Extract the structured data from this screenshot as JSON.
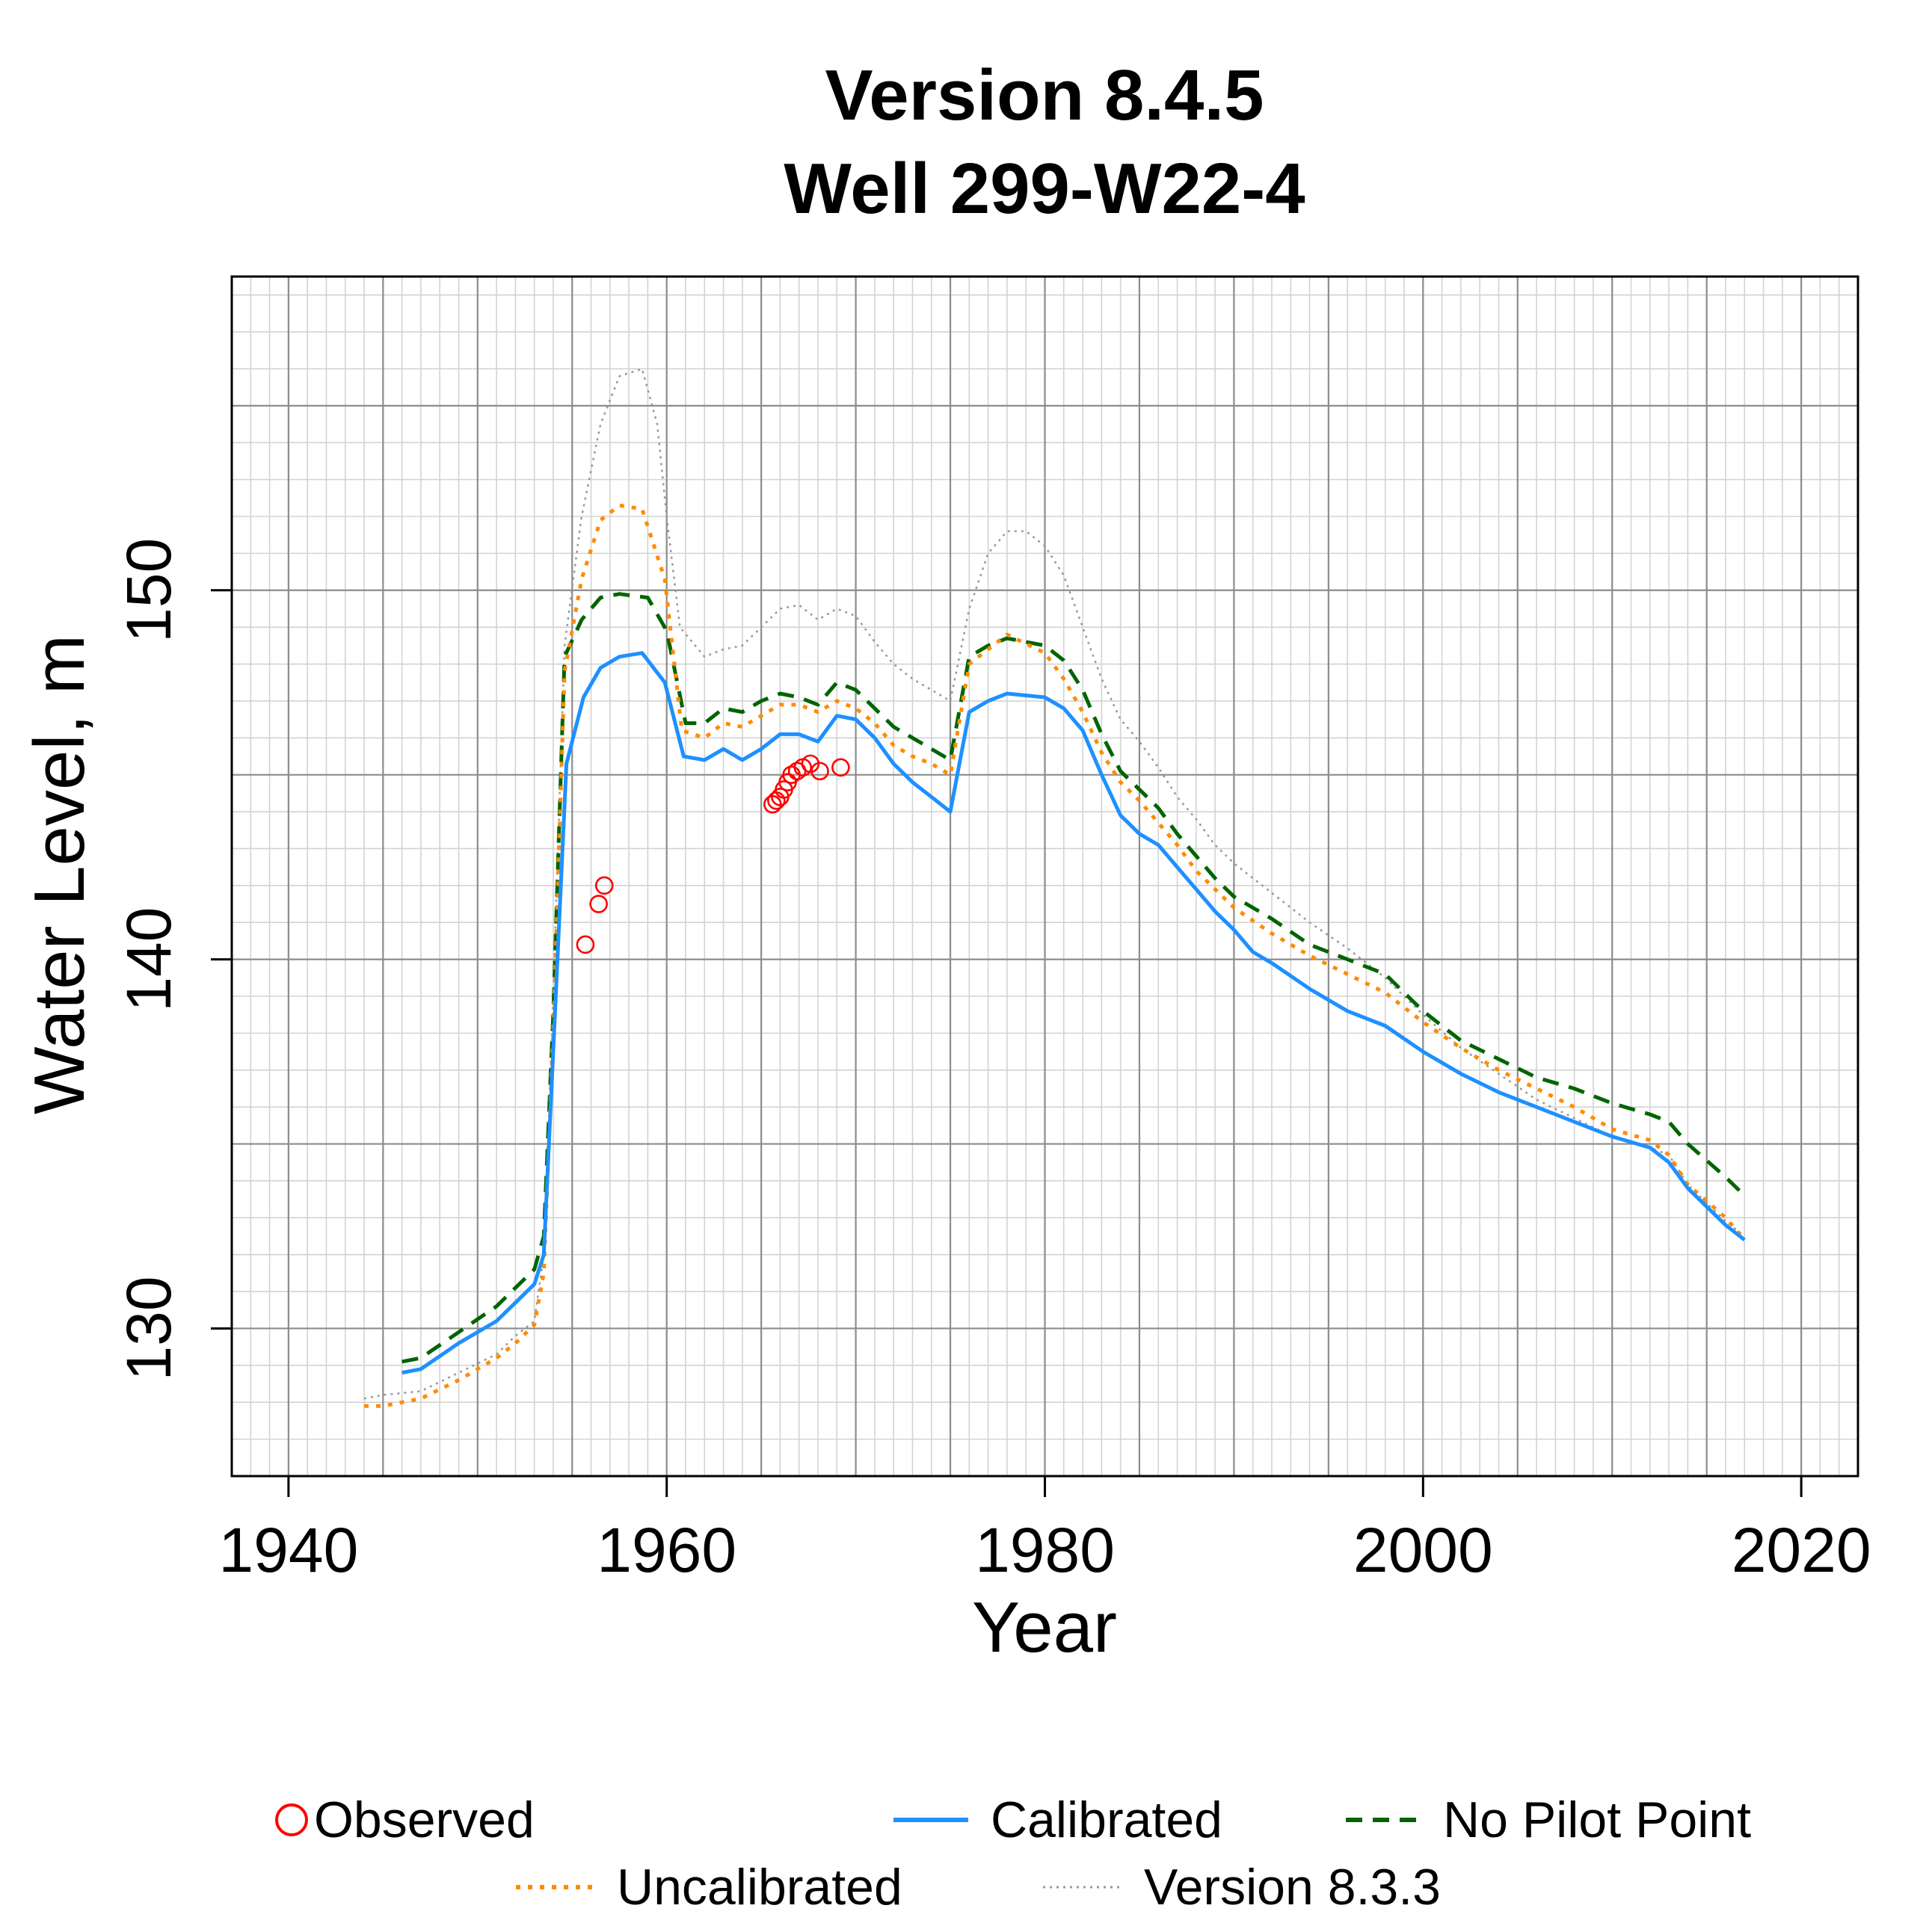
{
  "chart_data": {
    "type": "line",
    "title": "Version 8.4.5",
    "subtitle": "Well 299-W22-4",
    "xlabel": "Year",
    "ylabel": "Water Level, m",
    "xlim": [
      1937,
      2023
    ],
    "ylim": [
      126,
      158.5
    ],
    "x_ticks": [
      1940,
      1960,
      1980,
      2000,
      2020
    ],
    "y_ticks": [
      130,
      140,
      150
    ],
    "x_tick_labels": [
      "1940",
      "1960",
      "1980",
      "2000",
      "2020"
    ],
    "y_tick_labels": [
      "130",
      "140",
      "150"
    ],
    "grid": true,
    "legend_position": "bottom",
    "series": [
      {
        "name": "Calibrated",
        "style": "solid",
        "color": "#1E90FF",
        "points": [
          [
            1946,
            128.8
          ],
          [
            1947,
            128.9
          ],
          [
            1949,
            129.6
          ],
          [
            1951,
            130.2
          ],
          [
            1952,
            130.7
          ],
          [
            1953,
            131.2
          ],
          [
            1953.5,
            132.0
          ],
          [
            1954,
            137.5
          ],
          [
            1954.7,
            145.3
          ],
          [
            1955.6,
            147.1
          ],
          [
            1956.5,
            147.9
          ],
          [
            1957.5,
            148.2
          ],
          [
            1958.7,
            148.3
          ],
          [
            1959.9,
            147.5
          ],
          [
            1960.9,
            145.5
          ],
          [
            1962,
            145.4
          ],
          [
            1963,
            145.7
          ],
          [
            1964,
            145.4
          ],
          [
            1965,
            145.7
          ],
          [
            1966,
            146.1
          ],
          [
            1967,
            146.1
          ],
          [
            1968,
            145.9
          ],
          [
            1969,
            146.6
          ],
          [
            1970,
            146.5
          ],
          [
            1971,
            146.0
          ],
          [
            1972,
            145.3
          ],
          [
            1973,
            144.8
          ],
          [
            1974,
            144.4
          ],
          [
            1975,
            144.0
          ],
          [
            1976,
            146.7
          ],
          [
            1977,
            147.0
          ],
          [
            1978,
            147.2
          ],
          [
            1980,
            147.1
          ],
          [
            1981,
            146.8
          ],
          [
            1982,
            146.2
          ],
          [
            1983,
            145.0
          ],
          [
            1984,
            143.9
          ],
          [
            1985,
            143.4
          ],
          [
            1986,
            143.1
          ],
          [
            1987,
            142.5
          ],
          [
            1988,
            141.9
          ],
          [
            1989,
            141.3
          ],
          [
            1990,
            140.8
          ],
          [
            1991,
            140.2
          ],
          [
            1992,
            139.9
          ],
          [
            1994,
            139.2
          ],
          [
            1996,
            138.6
          ],
          [
            1998,
            138.2
          ],
          [
            2000,
            137.5
          ],
          [
            2002,
            136.9
          ],
          [
            2004,
            136.4
          ],
          [
            2006,
            136.0
          ],
          [
            2008,
            135.6
          ],
          [
            2010,
            135.2
          ],
          [
            2012,
            134.9
          ],
          [
            2013,
            134.5
          ],
          [
            2014,
            133.8
          ],
          [
            2016,
            132.8
          ],
          [
            2017,
            132.4
          ]
        ]
      },
      {
        "name": "No Pilot Point",
        "style": "dashed",
        "color": "#006400",
        "points": [
          [
            1946,
            129.1
          ],
          [
            1947,
            129.2
          ],
          [
            1949,
            129.9
          ],
          [
            1951,
            130.6
          ],
          [
            1952,
            131.1
          ],
          [
            1953,
            131.6
          ],
          [
            1953.5,
            132.5
          ],
          [
            1954,
            138.5
          ],
          [
            1954.6,
            148.2
          ],
          [
            1955.5,
            149.2
          ],
          [
            1956.5,
            149.8
          ],
          [
            1957.5,
            149.9
          ],
          [
            1959,
            149.8
          ],
          [
            1960,
            148.9
          ],
          [
            1961,
            146.4
          ],
          [
            1962,
            146.4
          ],
          [
            1963,
            146.8
          ],
          [
            1964,
            146.7
          ],
          [
            1965,
            147.0
          ],
          [
            1966,
            147.2
          ],
          [
            1967,
            147.1
          ],
          [
            1968,
            146.9
          ],
          [
            1969,
            147.5
          ],
          [
            1970,
            147.3
          ],
          [
            1971,
            146.8
          ],
          [
            1972,
            146.3
          ],
          [
            1973,
            146.0
          ],
          [
            1974,
            145.7
          ],
          [
            1975,
            145.4
          ],
          [
            1976,
            148.2
          ],
          [
            1977,
            148.5
          ],
          [
            1978,
            148.7
          ],
          [
            1980,
            148.5
          ],
          [
            1981,
            148.1
          ],
          [
            1982,
            147.3
          ],
          [
            1983,
            146.1
          ],
          [
            1984,
            145.1
          ],
          [
            1985,
            144.6
          ],
          [
            1986,
            144.1
          ],
          [
            1987,
            143.4
          ],
          [
            1988,
            142.8
          ],
          [
            1989,
            142.2
          ],
          [
            1990,
            141.7
          ],
          [
            1992,
            141.1
          ],
          [
            1994,
            140.4
          ],
          [
            1996,
            140.0
          ],
          [
            1998,
            139.6
          ],
          [
            2000,
            138.6
          ],
          [
            2002,
            137.8
          ],
          [
            2004,
            137.3
          ],
          [
            2006,
            136.8
          ],
          [
            2008,
            136.5
          ],
          [
            2010,
            136.1
          ],
          [
            2012,
            135.8
          ],
          [
            2013,
            135.6
          ],
          [
            2014,
            135.0
          ],
          [
            2016,
            134.1
          ],
          [
            2017,
            133.6
          ]
        ]
      },
      {
        "name": "Uncalibrated",
        "style": "dotted",
        "color": "#FF8C00",
        "points": [
          [
            1944,
            127.9
          ],
          [
            1945,
            127.9
          ],
          [
            1947,
            128.1
          ],
          [
            1949,
            128.6
          ],
          [
            1951,
            129.2
          ],
          [
            1952,
            129.6
          ],
          [
            1953,
            130.1
          ],
          [
            1953.5,
            131.5
          ],
          [
            1954,
            138.0
          ],
          [
            1954.6,
            147.8
          ],
          [
            1955.5,
            150.3
          ],
          [
            1956.5,
            151.9
          ],
          [
            1957.5,
            152.3
          ],
          [
            1958.7,
            152.2
          ],
          [
            1959.9,
            150.3
          ],
          [
            1960.8,
            146.2
          ],
          [
            1962,
            146.0
          ],
          [
            1963,
            146.4
          ],
          [
            1964,
            146.3
          ],
          [
            1965,
            146.6
          ],
          [
            1966,
            146.9
          ],
          [
            1967,
            146.9
          ],
          [
            1968,
            146.7
          ],
          [
            1969,
            147.0
          ],
          [
            1970,
            146.8
          ],
          [
            1971,
            146.4
          ],
          [
            1972,
            145.8
          ],
          [
            1973,
            145.5
          ],
          [
            1974,
            145.3
          ],
          [
            1975,
            145.0
          ],
          [
            1976,
            148.0
          ],
          [
            1977,
            148.4
          ],
          [
            1978,
            148.8
          ],
          [
            1980,
            148.3
          ],
          [
            1981,
            147.6
          ],
          [
            1982,
            146.7
          ],
          [
            1983,
            145.6
          ],
          [
            1984,
            144.8
          ],
          [
            1985,
            144.3
          ],
          [
            1986,
            143.7
          ],
          [
            1987,
            143.1
          ],
          [
            1988,
            142.4
          ],
          [
            1989,
            141.9
          ],
          [
            1990,
            141.4
          ],
          [
            1992,
            140.7
          ],
          [
            1994,
            140.1
          ],
          [
            1996,
            139.6
          ],
          [
            1998,
            139.1
          ],
          [
            2000,
            138.3
          ],
          [
            2002,
            137.6
          ],
          [
            2004,
            137.0
          ],
          [
            2006,
            136.5
          ],
          [
            2008,
            136.0
          ],
          [
            2010,
            135.4
          ],
          [
            2012,
            135.1
          ],
          [
            2013,
            134.7
          ],
          [
            2014,
            133.9
          ],
          [
            2016,
            133.0
          ],
          [
            2017,
            132.4
          ]
        ]
      },
      {
        "name": "Version 8.3.3",
        "style": "dotted-thin",
        "color": "#999999",
        "points": [
          [
            1944,
            128.1
          ],
          [
            1945,
            128.2
          ],
          [
            1947,
            128.3
          ],
          [
            1949,
            128.8
          ],
          [
            1951,
            129.3
          ],
          [
            1952,
            129.8
          ],
          [
            1953,
            130.2
          ],
          [
            1953.5,
            132.0
          ],
          [
            1954,
            139.0
          ],
          [
            1954.6,
            148.5
          ],
          [
            1955.5,
            152.0
          ],
          [
            1956.5,
            154.5
          ],
          [
            1957.5,
            155.8
          ],
          [
            1958.7,
            156.0
          ],
          [
            1959.5,
            154.5
          ],
          [
            1960,
            152.0
          ],
          [
            1960.7,
            149.0
          ],
          [
            1962,
            148.2
          ],
          [
            1963,
            148.4
          ],
          [
            1964,
            148.5
          ],
          [
            1965,
            149.0
          ],
          [
            1966,
            149.5
          ],
          [
            1967,
            149.6
          ],
          [
            1968,
            149.2
          ],
          [
            1969,
            149.5
          ],
          [
            1970,
            149.3
          ],
          [
            1971,
            148.6
          ],
          [
            1972,
            148.0
          ],
          [
            1973,
            147.6
          ],
          [
            1974,
            147.3
          ],
          [
            1975,
            147.0
          ],
          [
            1976,
            149.5
          ],
          [
            1977,
            151.0
          ],
          [
            1978,
            151.6
          ],
          [
            1979,
            151.6
          ],
          [
            1980,
            151.2
          ],
          [
            1981,
            150.4
          ],
          [
            1982,
            149.0
          ],
          [
            1983,
            147.6
          ],
          [
            1984,
            146.5
          ],
          [
            1985,
            145.9
          ],
          [
            1986,
            145.2
          ],
          [
            1987,
            144.4
          ],
          [
            1988,
            143.8
          ],
          [
            1989,
            143.1
          ],
          [
            1990,
            142.6
          ],
          [
            1992,
            141.8
          ],
          [
            1994,
            141.0
          ],
          [
            1996,
            140.3
          ],
          [
            1998,
            139.5
          ],
          [
            2000,
            138.5
          ],
          [
            2002,
            137.6
          ],
          [
            2004,
            136.9
          ],
          [
            2006,
            136.2
          ],
          [
            2008,
            135.7
          ],
          [
            2010,
            135.2
          ],
          [
            2012,
            134.9
          ],
          [
            2013,
            134.7
          ],
          [
            2014,
            133.9
          ],
          [
            2016,
            132.9
          ],
          [
            2017,
            132.5
          ]
        ]
      }
    ],
    "observed": {
      "name": "Observed",
      "marker": "circle",
      "color": "#FF0000",
      "points": [
        [
          1955.7,
          140.4
        ],
        [
          1956.4,
          141.5
        ],
        [
          1956.7,
          142.0
        ],
        [
          1965.6,
          144.2
        ],
        [
          1965.8,
          144.3
        ],
        [
          1966.0,
          144.4
        ],
        [
          1966.2,
          144.6
        ],
        [
          1966.4,
          144.8
        ],
        [
          1966.6,
          145.0
        ],
        [
          1966.9,
          145.1
        ],
        [
          1967.2,
          145.2
        ],
        [
          1967.6,
          145.3
        ],
        [
          1968.1,
          145.1
        ],
        [
          1969.2,
          145.2
        ]
      ]
    }
  }
}
